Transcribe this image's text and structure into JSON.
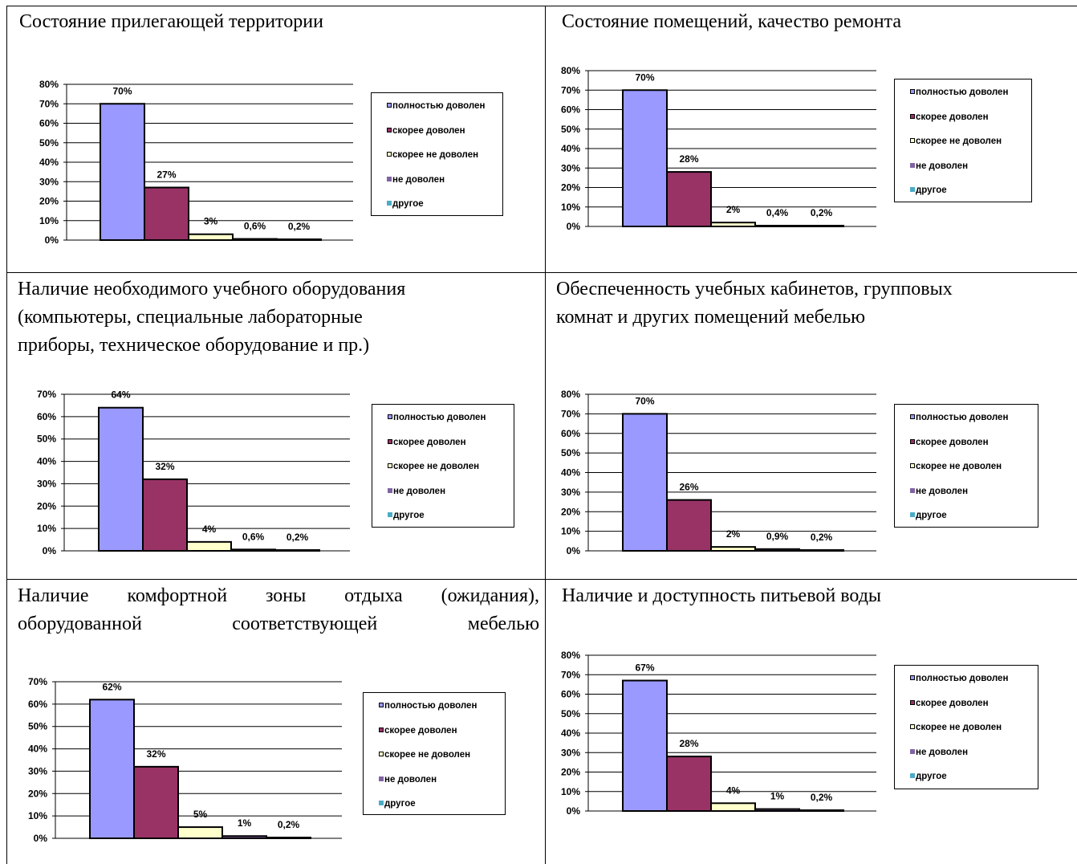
{
  "legend": {
    "labels": [
      "полностью доволен",
      "скорее доволен",
      "скорее не доволен",
      "не доволен",
      "другое"
    ],
    "colors": [
      "#9999FF",
      "#993366",
      "#FFFFCC",
      "#8064A2",
      "#4BACC6"
    ]
  },
  "panels": [
    {
      "title": "Состояние прилегающей территории"
    },
    {
      "title": "  Состояние помещений, качество ремонта"
    },
    {
      "title": "Наличие необходимого учебного оборудования\n(компьютеры, специальные лабораторные\nприборы, техническое оборудование и пр.)"
    },
    {
      "title": "Обеспеченность учебных кабинетов, групповых\nкомнат и других помещений мебелью"
    },
    {
      "title": "Наличие комфортной зоны отдыха (ожидания),\nоборудованной соответствующей мебелью"
    },
    {
      "title": " Наличие и доступность питьевой воды"
    }
  ],
  "chart_data": [
    {
      "type": "bar",
      "title": "Состояние прилегающей территории",
      "categories": [
        "полностью доволен",
        "скорее доволен",
        "скорее не доволен",
        "не доволен",
        "другое"
      ],
      "values": [
        70,
        27,
        3,
        0.6,
        0.2
      ],
      "value_labels": [
        "70%",
        "27%",
        "3%",
        "0,6%",
        "0,2%"
      ],
      "ylim": [
        0,
        80
      ],
      "yticks": [
        "0%",
        "10%",
        "20%",
        "30%",
        "40%",
        "50%",
        "60%",
        "70%",
        "80%"
      ],
      "grid": true,
      "legend": "right"
    },
    {
      "type": "bar",
      "title": "Состояние помещений, качество ремонта",
      "categories": [
        "полностью доволен",
        "скорее доволен",
        "скорее не доволен",
        "не доволен",
        "другое"
      ],
      "values": [
        70,
        28,
        2,
        0.4,
        0.2
      ],
      "value_labels": [
        "70%",
        "28%",
        "2%",
        "0,4%",
        "0,2%"
      ],
      "ylim": [
        0,
        80
      ],
      "yticks": [
        "0%",
        "10%",
        "20%",
        "30%",
        "40%",
        "50%",
        "60%",
        "70%",
        "80%"
      ],
      "grid": true,
      "legend": "right"
    },
    {
      "type": "bar",
      "title": "Наличие необходимого учебного оборудования (компьютеры, специальные лабораторные приборы, техническое оборудование и пр.)",
      "categories": [
        "полностью доволен",
        "скорее доволен",
        "скорее не доволен",
        "не доволен",
        "другое"
      ],
      "values": [
        64,
        32,
        4,
        0.6,
        0.2
      ],
      "value_labels": [
        "64%",
        "32%",
        "4%",
        "0,6%",
        "0,2%"
      ],
      "ylim": [
        0,
        70
      ],
      "yticks": [
        "0%",
        "10%",
        "20%",
        "30%",
        "40%",
        "50%",
        "60%",
        "70%"
      ],
      "grid": true,
      "legend": "right"
    },
    {
      "type": "bar",
      "title": "Обеспеченность учебных кабинетов, групповых комнат и других помещений мебелью",
      "categories": [
        "полностью доволен",
        "скорее доволен",
        "скорее не доволен",
        "не доволен",
        "другое"
      ],
      "values": [
        70,
        26,
        2,
        0.9,
        0.2
      ],
      "value_labels": [
        "70%",
        "26%",
        "2%",
        "0,9%",
        "0,2%"
      ],
      "ylim": [
        0,
        80
      ],
      "yticks": [
        "0%",
        "10%",
        "20%",
        "30%",
        "40%",
        "50%",
        "60%",
        "70%",
        "80%"
      ],
      "grid": true,
      "legend": "right"
    },
    {
      "type": "bar",
      "title": "Наличие комфортной зоны отдыха (ожидания), оборудованной соответствующей мебелью",
      "categories": [
        "полностью доволен",
        "скорее доволен",
        "скорее не доволен",
        "не доволен",
        "другое"
      ],
      "values": [
        62,
        32,
        5,
        1,
        0.2
      ],
      "value_labels": [
        "62%",
        "32%",
        "5%",
        "1%",
        "0,2%"
      ],
      "ylim": [
        0,
        70
      ],
      "yticks": [
        "0%",
        "10%",
        "20%",
        "30%",
        "40%",
        "50%",
        "60%",
        "70%"
      ],
      "grid": true,
      "legend": "right"
    },
    {
      "type": "bar",
      "title": "Наличие и доступность питьевой воды",
      "categories": [
        "полностью доволен",
        "скорее доволен",
        "скорее не доволен",
        "не доволен",
        "другое"
      ],
      "values": [
        67,
        28,
        4,
        1,
        0.2
      ],
      "value_labels": [
        "67%",
        "28%",
        "4%",
        "1%",
        "0,2%"
      ],
      "ylim": [
        0,
        80
      ],
      "yticks": [
        "0%",
        "10%",
        "20%",
        "30%",
        "40%",
        "50%",
        "60%",
        "70%",
        "80%"
      ],
      "grid": true,
      "legend": "right"
    }
  ]
}
